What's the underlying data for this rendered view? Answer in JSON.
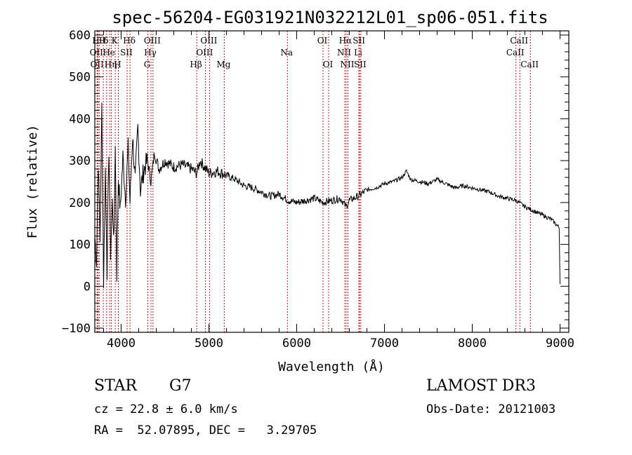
{
  "chart_data": {
    "type": "line",
    "title": "spec-56204-EG031921N032212L01_sp06-051.fits",
    "xlabel": "Wavelength (Å)",
    "ylabel": "Flux (relative)",
    "xlim": [
      3700,
      9100
    ],
    "ylim": [
      -110,
      610
    ],
    "xticks": [
      4000,
      5000,
      6000,
      7000,
      8000,
      9000
    ],
    "xtick_labels": [
      "4000",
      "5000",
      "6000",
      "7000",
      "8000",
      "9000"
    ],
    "yticks": [
      -100,
      0,
      100,
      200,
      300,
      400,
      500,
      600
    ],
    "ytick_labels": [
      "−100",
      "0",
      "100",
      "200",
      "300",
      "400",
      "500",
      "600"
    ],
    "series": [
      {
        "name": "spectrum",
        "x": [
          3700,
          3720,
          3740,
          3760,
          3780,
          3800,
          3820,
          3840,
          3860,
          3880,
          3900,
          3920,
          3933,
          3950,
          3968,
          3990,
          4020,
          4050,
          4080,
          4101,
          4130,
          4160,
          4190,
          4220,
          4260,
          4300,
          4340,
          4380,
          4430,
          4500,
          4600,
          4700,
          4800,
          4861,
          4900,
          5000,
          5100,
          5200,
          5300,
          5400,
          5500,
          5600,
          5700,
          5800,
          5900,
          6000,
          6100,
          6200,
          6300,
          6400,
          6500,
          6563,
          6600,
          6700,
          6800,
          6900,
          7000,
          7100,
          7200,
          7250,
          7300,
          7400,
          7500,
          7600,
          7700,
          7800,
          7900,
          8000,
          8100,
          8200,
          8300,
          8400,
          8500,
          8600,
          8700,
          8800,
          8900,
          8990,
          9000
        ],
        "y": [
          120,
          60,
          300,
          110,
          430,
          10,
          280,
          40,
          330,
          80,
          200,
          110,
          350,
          30,
          260,
          180,
          310,
          210,
          330,
          200,
          360,
          250,
          380,
          230,
          280,
          300,
          250,
          320,
          280,
          300,
          285,
          290,
          280,
          270,
          300,
          270,
          275,
          265,
          255,
          240,
          235,
          225,
          215,
          220,
          205,
          200,
          205,
          210,
          200,
          205,
          210,
          190,
          205,
          215,
          230,
          235,
          245,
          250,
          260,
          275,
          255,
          250,
          245,
          255,
          245,
          235,
          240,
          235,
          230,
          225,
          215,
          210,
          205,
          190,
          180,
          170,
          160,
          140,
          5
        ]
      }
    ],
    "line_markers": [
      {
        "x": 3726,
        "row": 1,
        "label": "OII",
        "color": "#c00000"
      },
      {
        "x": 3734,
        "row": 2,
        "label": "OII",
        "color": "#c00000"
      },
      {
        "x": 3750,
        "row": 0,
        "label": "Hθ",
        "color": "#c00000"
      },
      {
        "x": 3797,
        "row": 0,
        "label": "H",
        "color": "#c00000"
      },
      {
        "x": 3835,
        "row": 0,
        "label": "δ",
        "color": "#c00000"
      },
      {
        "x": 3869,
        "row": 1,
        "label": "He",
        "color": "#c00000"
      },
      {
        "x": 3889,
        "row": 2,
        "label": "Hη",
        "color": "#c00000"
      },
      {
        "x": 3933,
        "row": 0,
        "label": "K",
        "color": "#c00000"
      },
      {
        "x": 3968,
        "row": 2,
        "label": "H",
        "color": "#c00000"
      },
      {
        "x": 4068,
        "row": 1,
        "label": "SII",
        "color": "#c00000"
      },
      {
        "x": 4101,
        "row": 0,
        "label": "Hδ",
        "color": "#c00000"
      },
      {
        "x": 4304,
        "row": 2,
        "label": "G",
        "color": "#c00000"
      },
      {
        "x": 4340,
        "row": 1,
        "label": "Hγ",
        "color": "#c00000"
      },
      {
        "x": 4363,
        "row": 0,
        "label": "OIII",
        "color": "#c00000"
      },
      {
        "x": 4861,
        "row": 2,
        "label": "Hβ",
        "color": "#c00000"
      },
      {
        "x": 4959,
        "row": 1,
        "label": "OIII",
        "color": "#c00000"
      },
      {
        "x": 5007,
        "row": 0,
        "label": "OIII",
        "color": "#c00000"
      },
      {
        "x": 5175,
        "row": 2,
        "label": "Mg",
        "color": "#c00000"
      },
      {
        "x": 5894,
        "row": 1,
        "label": "Na",
        "color": "#c00000"
      },
      {
        "x": 6300,
        "row": 0,
        "label": "OI",
        "color": "#c00000"
      },
      {
        "x": 6364,
        "row": 2,
        "label": "OI",
        "color": "#c00000"
      },
      {
        "x": 6548,
        "row": 1,
        "label": "NII",
        "color": "#c00000"
      },
      {
        "x": 6563,
        "row": 0,
        "label": "Hα",
        "color": "#c00000"
      },
      {
        "x": 6584,
        "row": 2,
        "label": "NII",
        "color": "#c00000"
      },
      {
        "x": 6708,
        "row": 1,
        "label": "Li",
        "color": "#c00000"
      },
      {
        "x": 6717,
        "row": 0,
        "label": "SII",
        "color": "#c00000"
      },
      {
        "x": 6731,
        "row": 2,
        "label": "SII",
        "color": "#c00000"
      },
      {
        "x": 8498,
        "row": 1,
        "label": "CaII",
        "color": "#c00000"
      },
      {
        "x": 8542,
        "row": 0,
        "label": "CaII",
        "color": "#c00000"
      },
      {
        "x": 8662,
        "row": 2,
        "label": "CaII",
        "color": "#c00000"
      }
    ]
  },
  "info": {
    "object_class": "STAR",
    "subclass": "G7",
    "survey": "LAMOST DR3",
    "redshift": "cz = 22.8 ± 6.0 km/s",
    "obs_date": "Obs-Date: 20121003",
    "coords": "RA =  52.07895, DEC =   3.29705"
  },
  "colors": {
    "spectrum": "#000000",
    "marker": "#c00000"
  }
}
